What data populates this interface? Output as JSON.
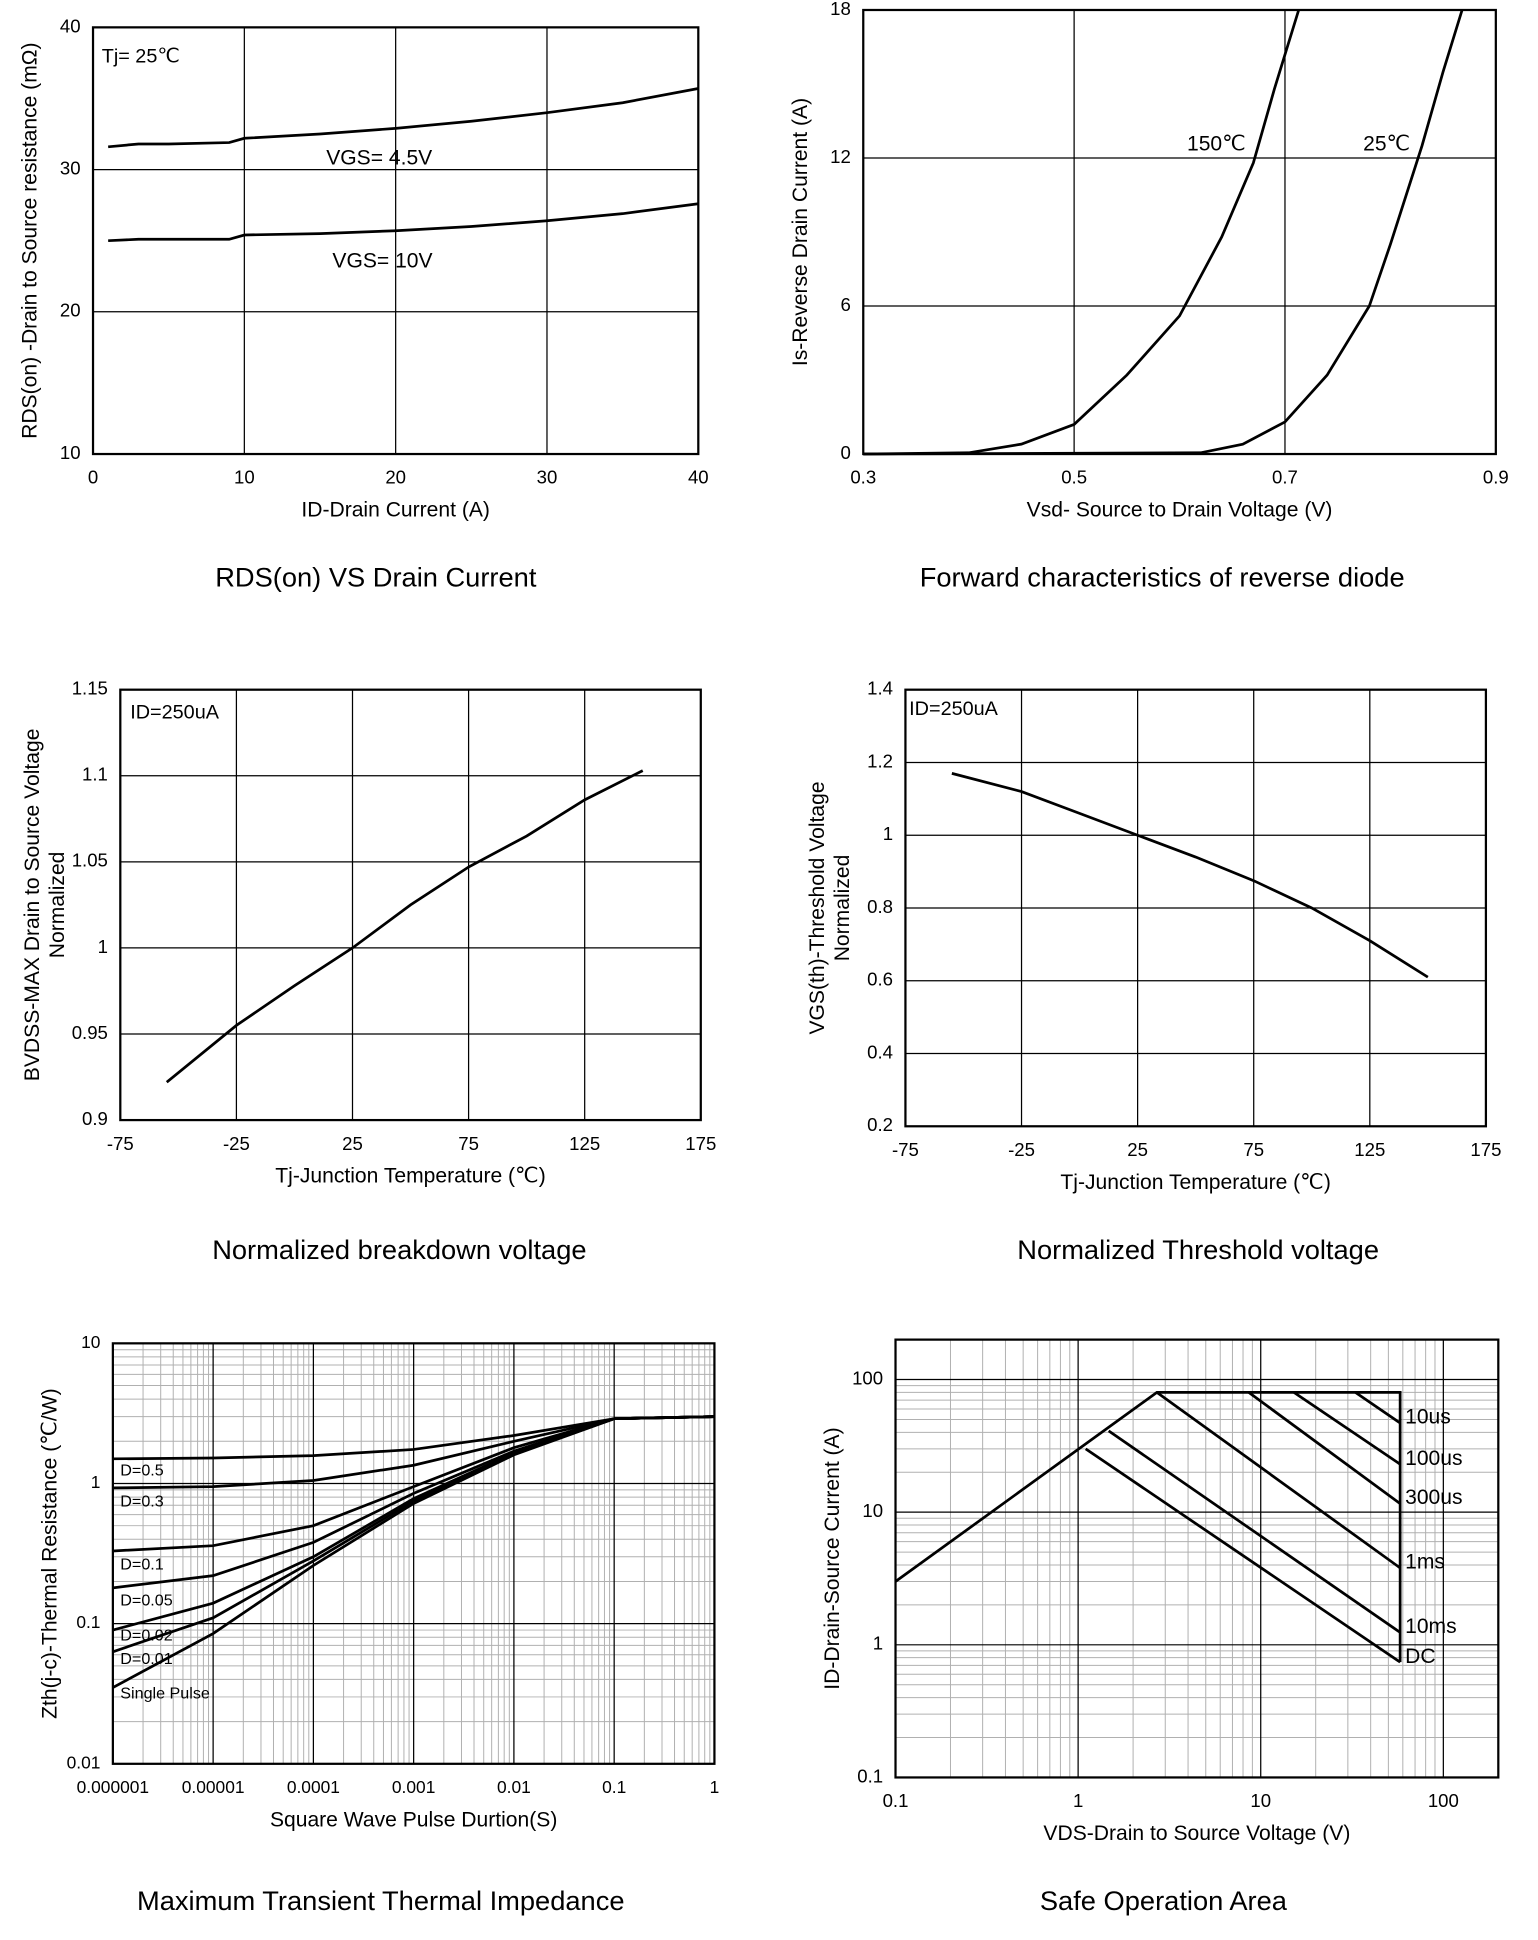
{
  "chart_data": [
    {
      "type": "line",
      "title": "RDS(on) VS Drain Current",
      "xlabel": "ID-Drain Current (A)",
      "ylabel": [
        "RDS(on) -Drain to Source resistance (mΩ)"
      ],
      "annotation": "Tj= 25℃",
      "xlim": [
        0,
        40
      ],
      "xticks": [
        0,
        10,
        20,
        30,
        40
      ],
      "ylim": [
        10,
        40
      ],
      "yticks": [
        10,
        20,
        30,
        40
      ],
      "grid": true,
      "series": [
        {
          "name": "VGS= 4.5V",
          "color": "#000000",
          "x": [
            1,
            3,
            5,
            9,
            10,
            15,
            20,
            25,
            30,
            35,
            40
          ],
          "values": [
            31.6,
            31.8,
            31.8,
            31.9,
            32.2,
            32.5,
            32.9,
            33.4,
            34.0,
            34.7,
            35.7
          ]
        },
        {
          "name": "VGS= 10V",
          "color": "#000000",
          "x": [
            1,
            3,
            5,
            9,
            10,
            15,
            20,
            25,
            30,
            35,
            40
          ],
          "values": [
            25.0,
            25.1,
            25.1,
            25.1,
            25.4,
            25.5,
            25.7,
            26.0,
            26.4,
            26.9,
            27.6
          ]
        }
      ]
    },
    {
      "type": "line",
      "title": "Forward characteristics of reverse diode",
      "xlabel": "Vsd- Source to Drain Voltage (V)",
      "ylabel": [
        "Is-Reverse Drain Current (A)"
      ],
      "xlim": [
        0.3,
        0.9
      ],
      "xticks": [
        0.3,
        0.5,
        0.7,
        0.9
      ],
      "ylim": [
        0,
        18
      ],
      "yticks": [
        0,
        6,
        12,
        18
      ],
      "grid": true,
      "series": [
        {
          "name": "150℃",
          "color": "#000000",
          "x": [
            0.3,
            0.4,
            0.45,
            0.5,
            0.55,
            0.6,
            0.64,
            0.67,
            0.69,
            0.713
          ],
          "values": [
            0,
            0.05,
            0.4,
            1.2,
            3.2,
            5.6,
            8.8,
            11.8,
            14.8,
            18
          ]
        },
        {
          "name": "25℃",
          "color": "#000000",
          "x": [
            0.3,
            0.62,
            0.66,
            0.7,
            0.74,
            0.78,
            0.8,
            0.83,
            0.85,
            0.868
          ],
          "values": [
            0,
            0.05,
            0.4,
            1.3,
            3.2,
            6,
            8.5,
            12.5,
            15.5,
            18
          ]
        }
      ]
    },
    {
      "type": "line",
      "title": "Normalized breakdown voltage",
      "xlabel": "Tj-Junction Temperature (℃)",
      "ylabel": [
        "BVDSS-MAX Drain to Source Voltage",
        "Normalized"
      ],
      "annotation": "ID=250uA",
      "xlim": [
        -75,
        175
      ],
      "xticks": [
        -75,
        -25,
        25,
        75,
        125,
        175
      ],
      "ylim": [
        0.9,
        1.15
      ],
      "yticks": [
        0.9,
        0.95,
        1,
        1.05,
        1.1,
        1.15
      ],
      "grid": true,
      "series": [
        {
          "color": "#000000",
          "x": [
            -55,
            -25,
            0,
            25,
            50,
            75,
            100,
            125,
            150
          ],
          "values": [
            0.922,
            0.955,
            0.978,
            1.0,
            1.025,
            1.047,
            1.065,
            1.086,
            1.103
          ]
        }
      ]
    },
    {
      "type": "line",
      "title": "Normalized Threshold voltage",
      "xlabel": "Tj-Junction Temperature (℃)",
      "ylabel": [
        "VGS(th)-Threshold Voltage",
        "Normalized"
      ],
      "annotation": "ID=250uA",
      "xlim": [
        -75,
        175
      ],
      "xticks": [
        -75,
        -25,
        25,
        75,
        125,
        175
      ],
      "ylim": [
        0.2,
        1.4
      ],
      "yticks": [
        0.2,
        0.4,
        0.6,
        0.8,
        1,
        1.2,
        1.4
      ],
      "grid": true,
      "series": [
        {
          "color": "#000000",
          "x": [
            -55,
            -25,
            0,
            25,
            50,
            75,
            100,
            125,
            150
          ],
          "values": [
            1.17,
            1.12,
            1.06,
            1.0,
            0.94,
            0.875,
            0.8,
            0.71,
            0.61
          ]
        }
      ]
    },
    {
      "type": "line",
      "title": "Maximum Transient Thermal Impedance",
      "xlabel": "Square Wave Pulse Durtion(S)",
      "ylabel": [
        "Zth(j-c)-Thermal Resistance (℃/W)"
      ],
      "xlog": true,
      "ylog": true,
      "xlim": [
        1e-06,
        1
      ],
      "xticks": [
        1e-06,
        1e-05,
        0.0001,
        0.001,
        0.01,
        0.1,
        1
      ],
      "ylim": [
        0.01,
        10
      ],
      "yticks": [
        0.01,
        0.1,
        1,
        10
      ],
      "grid": true,
      "series": [
        {
          "name": "D=0.5",
          "color": "#000000",
          "x": [
            1e-06,
            1e-05,
            0.0001,
            0.001,
            0.01,
            0.1,
            1
          ],
          "values": [
            1.5,
            1.52,
            1.58,
            1.75,
            2.2,
            2.9,
            3.0
          ]
        },
        {
          "name": "D=0.3",
          "color": "#000000",
          "x": [
            1e-06,
            1e-05,
            0.0001,
            0.001,
            0.01,
            0.1,
            1
          ],
          "values": [
            0.93,
            0.95,
            1.05,
            1.35,
            2.0,
            2.9,
            3.0
          ]
        },
        {
          "name": "D=0.1",
          "color": "#000000",
          "x": [
            1e-06,
            1e-05,
            0.0001,
            0.001,
            0.01,
            0.1,
            1
          ],
          "values": [
            0.33,
            0.36,
            0.5,
            0.95,
            1.8,
            2.9,
            3.0
          ]
        },
        {
          "name": "D=0.05",
          "color": "#000000",
          "x": [
            1e-06,
            1e-05,
            0.0001,
            0.001,
            0.01,
            0.1,
            1
          ],
          "values": [
            0.18,
            0.22,
            0.38,
            0.85,
            1.7,
            2.9,
            3.0
          ]
        },
        {
          "name": "D=0.02",
          "color": "#000000",
          "x": [
            1e-06,
            1e-05,
            0.0001,
            0.001,
            0.01,
            0.1,
            1
          ],
          "values": [
            0.09,
            0.14,
            0.3,
            0.78,
            1.65,
            2.9,
            3.0
          ]
        },
        {
          "name": "D=0.01",
          "color": "#000000",
          "x": [
            1e-06,
            1e-05,
            0.0001,
            0.001,
            0.01,
            0.1,
            1
          ],
          "values": [
            0.063,
            0.11,
            0.28,
            0.75,
            1.62,
            2.9,
            3.0
          ]
        },
        {
          "name": "Single Pulse",
          "color": "#000000",
          "x": [
            1e-06,
            1e-05,
            0.0001,
            0.001,
            0.01,
            0.1,
            1
          ],
          "values": [
            0.035,
            0.085,
            0.26,
            0.72,
            1.6,
            2.9,
            3.0
          ]
        }
      ]
    },
    {
      "type": "line",
      "title": "Safe Operation Area",
      "xlabel": "VDS-Drain to Source Voltage (V)",
      "ylabel": [
        "ID-Drain-Source Current (A)"
      ],
      "xlog": true,
      "ylog": true,
      "xlim": [
        0.1,
        200
      ],
      "xticks": [
        0.1,
        1,
        10,
        100
      ],
      "ylim": [
        0.1,
        200
      ],
      "yticks": [
        0.1,
        1,
        10,
        100
      ],
      "grid": true,
      "series": [
        {
          "color": "#000000",
          "x": [
            0.1,
            2.7,
            58,
            58
          ],
          "values": [
            3,
            80,
            80,
            0.74
          ]
        },
        {
          "name": "10us",
          "color": "#000000",
          "x": [
            33,
            58
          ],
          "values": [
            80,
            47
          ]
        },
        {
          "name": "100us",
          "color": "#000000",
          "x": [
            15.2,
            58
          ],
          "values": [
            80,
            23
          ]
        },
        {
          "name": "300us",
          "color": "#000000",
          "x": [
            8.6,
            58
          ],
          "values": [
            80,
            11.6
          ]
        },
        {
          "name": "1ms",
          "color": "#000000",
          "x": [
            2.7,
            58
          ],
          "values": [
            80,
            3.8
          ]
        },
        {
          "name": "10ms",
          "color": "#000000",
          "x": [
            1.47,
            58
          ],
          "values": [
            41,
            1.24
          ]
        },
        {
          "name": "DC",
          "color": "#000000",
          "x": [
            1.1,
            58
          ],
          "values": [
            30,
            0.74
          ]
        }
      ]
    }
  ]
}
